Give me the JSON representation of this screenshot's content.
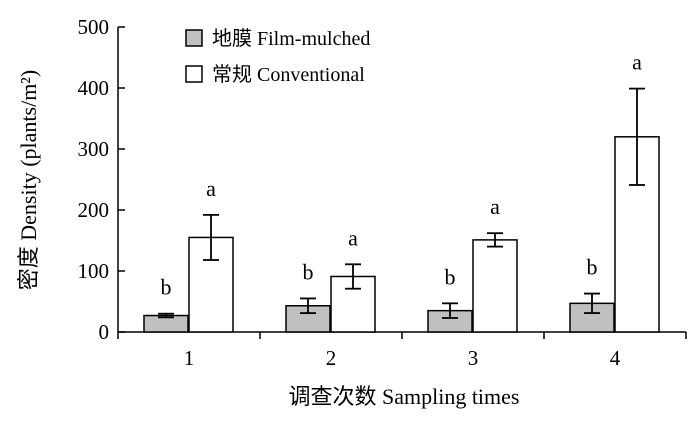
{
  "chart_data": {
    "type": "bar",
    "categories": [
      "1",
      "2",
      "3",
      "4"
    ],
    "series": [
      {
        "name": "地膜 Film-mulched",
        "values": [
          27,
          43,
          35,
          47
        ],
        "error": [
          3,
          12,
          12,
          16
        ],
        "significance": [
          "b",
          "b",
          "b",
          "b"
        ],
        "color": "#c0c0c0"
      },
      {
        "name": "常规 Conventional",
        "values": [
          155,
          91,
          151,
          320
        ],
        "error": [
          37,
          20,
          11,
          79
        ],
        "significance": [
          "a",
          "a",
          "a",
          "a"
        ],
        "color": "#ffffff"
      }
    ],
    "xlabel": "调查次数 Sampling times",
    "ylabel": "密度 Density (plants/m²)",
    "ylim": [
      0,
      500
    ],
    "yticks": [
      "0",
      "100",
      "200",
      "300",
      "400",
      "500"
    ],
    "grid": false,
    "legend_position": "top-left"
  }
}
